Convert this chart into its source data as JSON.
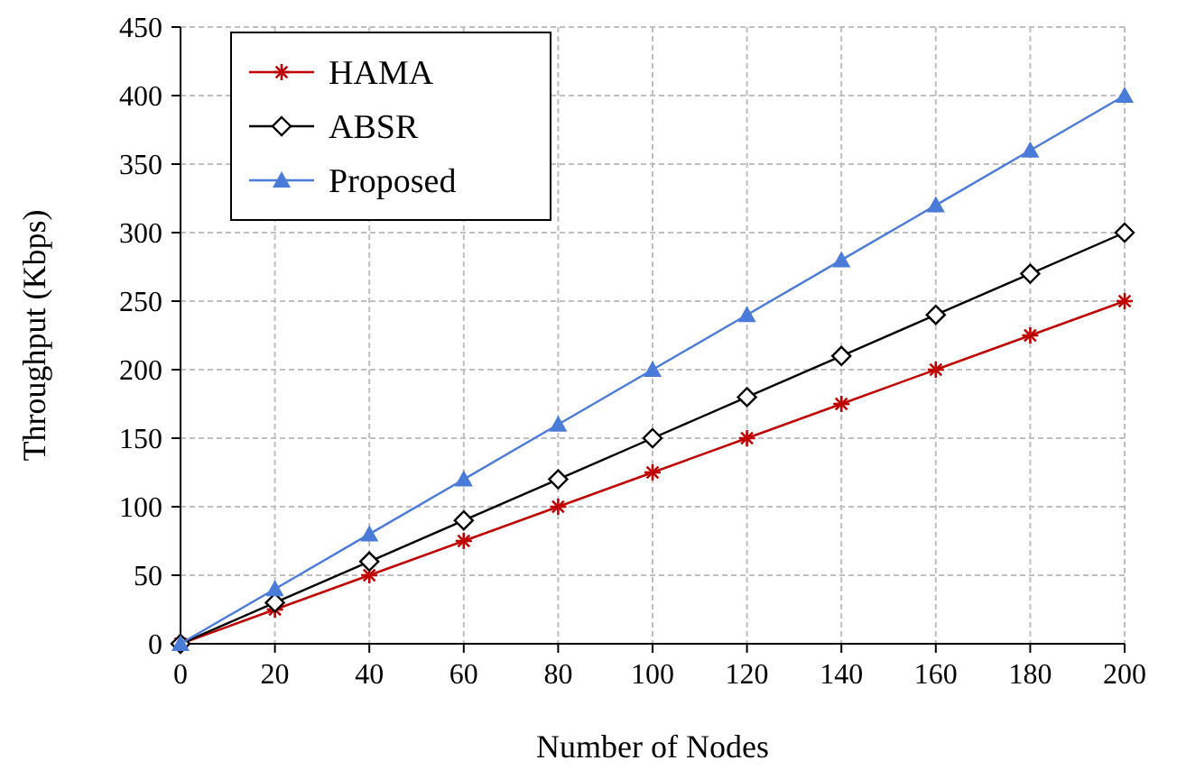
{
  "chart_data": {
    "type": "line",
    "xlabel": "Number of Nodes",
    "ylabel": "Throughput (Kbps)",
    "x": [
      0,
      20,
      40,
      60,
      80,
      100,
      120,
      140,
      160,
      180,
      200
    ],
    "xlim": [
      0,
      200
    ],
    "xticks": [
      0,
      20,
      40,
      60,
      80,
      100,
      120,
      140,
      160,
      180,
      200
    ],
    "ylim": [
      0,
      450
    ],
    "yticks": [
      0,
      50,
      100,
      150,
      200,
      250,
      300,
      350,
      400,
      450
    ],
    "grid": true,
    "legend": "top left",
    "series": [
      {
        "name": "HAMA",
        "color": "#c00000",
        "marker": "cross",
        "values": [
          0,
          25,
          50,
          75,
          100,
          125,
          150,
          175,
          200,
          225,
          250
        ]
      },
      {
        "name": "ABSR",
        "color": "#000000",
        "marker": "diamond",
        "values": [
          0,
          30,
          60,
          90,
          120,
          150,
          180,
          210,
          240,
          270,
          300
        ]
      },
      {
        "name": "Proposed",
        "color": "#4a7bd8",
        "marker": "triangle",
        "values": [
          0,
          40,
          80,
          120,
          160,
          200,
          240,
          280,
          320,
          360,
          400
        ]
      }
    ]
  }
}
